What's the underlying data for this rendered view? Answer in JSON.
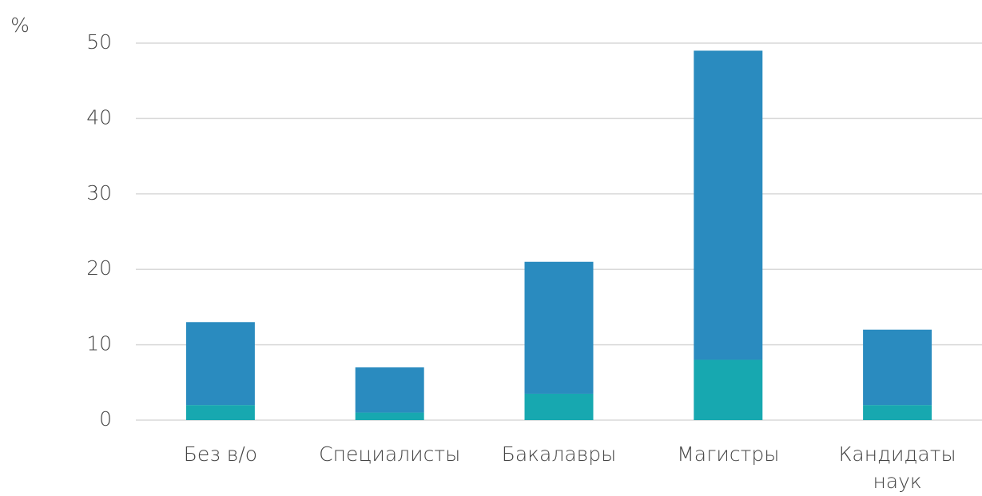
{
  "chart_data": {
    "type": "stacked_bar",
    "y_label": "%",
    "categories": [
      "Без в/о",
      "Специалисты",
      "Бакалавры",
      "Магистры",
      "Кандидаты наук"
    ],
    "series": [
      {
        "color": "#17a8b0",
        "values": [
          2,
          1,
          3.5,
          8,
          2
        ]
      },
      {
        "color": "#2a8bbf",
        "values": [
          11,
          6,
          17.5,
          41,
          10
        ]
      }
    ],
    "ylim": [
      0,
      50
    ],
    "yticks": [
      0,
      10,
      20,
      30,
      40,
      50
    ],
    "grid": true
  }
}
